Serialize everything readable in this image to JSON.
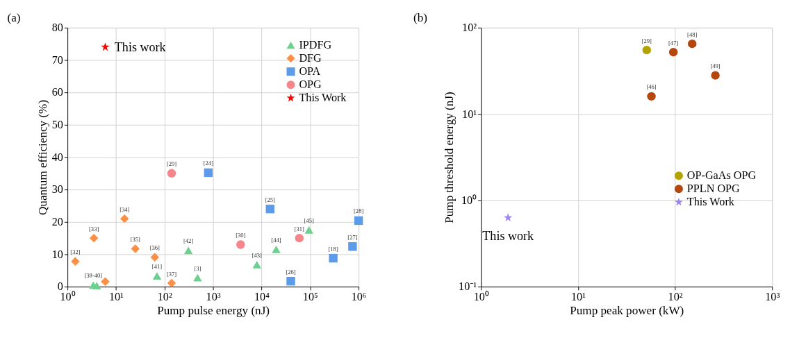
{
  "chart_data": [
    {
      "type": "scatter",
      "title": "(a)",
      "xlabel": "Pump pulse energy (nJ)",
      "ylabel": "Quantum efficiency (%)",
      "log": "x",
      "grid": true,
      "legend": "top right",
      "xlim": [
        1,
        1000000
      ],
      "ylim": [
        0,
        80
      ],
      "xticks": [
        {
          "value": 1,
          "label": "10⁰"
        },
        {
          "value": 10,
          "label": "10¹"
        },
        {
          "value": 100,
          "label": "10²"
        },
        {
          "value": 1000,
          "label": "10³"
        },
        {
          "value": 10000,
          "label": "10⁴"
        },
        {
          "value": 100000,
          "label": "10⁵"
        },
        {
          "value": 1000000,
          "label": "10⁶"
        }
      ],
      "yticks": [
        0,
        10,
        20,
        30,
        40,
        50,
        60,
        70,
        80
      ],
      "series": [
        {
          "name": "IPDFG",
          "color": "#6dd08e",
          "marker": "triangle",
          "x": [
            3.4,
            4,
            70,
            310,
            480,
            8000,
            20000,
            95000
          ],
          "values": [
            0.5,
            0.3,
            3.3,
            11.2,
            2.8,
            6.8,
            11.5,
            17.5
          ]
        },
        {
          "name": "DFG",
          "color": "#fb8f45",
          "marker": "diamond",
          "x": [
            1.45,
            3.5,
            15,
            25,
            63,
            140,
            6
          ],
          "values": [
            7.8,
            15,
            21,
            11.7,
            9.1,
            1.1,
            1.6
          ]
        },
        {
          "name": "OPA",
          "color": "#5b9bea",
          "marker": "square",
          "x": [
            800,
            15000,
            40000,
            300000,
            750000,
            1000000
          ],
          "values": [
            35.2,
            24,
            1.7,
            8.8,
            12.4,
            20.4
          ]
        },
        {
          "name": "OPG",
          "color": "#f5868b",
          "marker": "circle",
          "x": [
            140,
            3700,
            60000
          ],
          "values": [
            35,
            13,
            15
          ]
        },
        {
          "name": "This Work",
          "color": "#ff0000",
          "marker": "star",
          "x": [
            6
          ],
          "values": [
            74
          ]
        }
      ],
      "annotations": [
        {
          "text": "[38-40]",
          "x": 3.4,
          "y": 0.5
        },
        {
          "text": "[41]",
          "x": 70,
          "y": 3.3
        },
        {
          "text": "[42]",
          "x": 310,
          "y": 11.2
        },
        {
          "text": "[3]",
          "x": 480,
          "y": 2.8
        },
        {
          "text": "[43]",
          "x": 8000,
          "y": 6.8
        },
        {
          "text": "[44]",
          "x": 20000,
          "y": 11.5
        },
        {
          "text": "[45]",
          "x": 95000,
          "y": 17.5
        },
        {
          "text": "[32]",
          "x": 1.45,
          "y": 7.8
        },
        {
          "text": "[33]",
          "x": 3.5,
          "y": 15
        },
        {
          "text": "[34]",
          "x": 15,
          "y": 21
        },
        {
          "text": "[35]",
          "x": 25,
          "y": 11.7
        },
        {
          "text": "[36]",
          "x": 63,
          "y": 9.1
        },
        {
          "text": "[37]",
          "x": 140,
          "y": 1.1
        },
        {
          "text": "[24]",
          "x": 800,
          "y": 35.2
        },
        {
          "text": "[25]",
          "x": 15000,
          "y": 24
        },
        {
          "text": "[26]",
          "x": 40000,
          "y": 1.7
        },
        {
          "text": "[18]",
          "x": 300000,
          "y": 8.8
        },
        {
          "text": "[27]",
          "x": 750000,
          "y": 12.4
        },
        {
          "text": "[28]",
          "x": 1000000,
          "y": 20.4
        },
        {
          "text": "[29]",
          "x": 140,
          "y": 35
        },
        {
          "text": "[30]",
          "x": 3700,
          "y": 13
        },
        {
          "text": "[31]",
          "x": 60000,
          "y": 15
        },
        {
          "text": "This work",
          "x": 6,
          "y": 74
        }
      ]
    },
    {
      "type": "scatter",
      "title": "(b)",
      "xlabel": "Pump peak power (kW)",
      "ylabel": "Pump threshold energy (nJ)",
      "log": "xy",
      "grid": true,
      "legend": "right",
      "xlim": [
        1,
        1000
      ],
      "ylim": [
        0.1,
        100
      ],
      "xticks": [
        {
          "value": 1,
          "label": "10⁰"
        },
        {
          "value": 10,
          "label": "10¹"
        },
        {
          "value": 100,
          "label": "10²"
        },
        {
          "value": 1000,
          "label": "10³"
        }
      ],
      "yticks": [
        {
          "value": 0.1,
          "label": "10⁻¹"
        },
        {
          "value": 1,
          "label": "10⁰"
        },
        {
          "value": 10,
          "label": "10¹"
        },
        {
          "value": 100,
          "label": "10²"
        }
      ],
      "series": [
        {
          "name": "OP-GaAs OPG",
          "color": "#b3a300",
          "marker": "circle",
          "x": [
            51
          ],
          "values": [
            55
          ]
        },
        {
          "name": "PPLN OPG",
          "color": "#b5460c",
          "marker": "circle",
          "x": [
            57,
            96,
            150,
            260
          ],
          "values": [
            16,
            52,
            65,
            28
          ]
        },
        {
          "name": "This Work",
          "color": "#9c82f2",
          "marker": "star",
          "x": [
            1.9
          ],
          "values": [
            0.63
          ]
        }
      ],
      "annotations": [
        {
          "text": "[29]",
          "x": 51,
          "y": 55
        },
        {
          "text": "[46]",
          "x": 57,
          "y": 16
        },
        {
          "text": "[47]",
          "x": 96,
          "y": 52
        },
        {
          "text": "[48]",
          "x": 150,
          "y": 65
        },
        {
          "text": "[49]",
          "x": 260,
          "y": 28
        },
        {
          "text": "This work",
          "x": 1.9,
          "y": 0.63
        }
      ]
    }
  ]
}
